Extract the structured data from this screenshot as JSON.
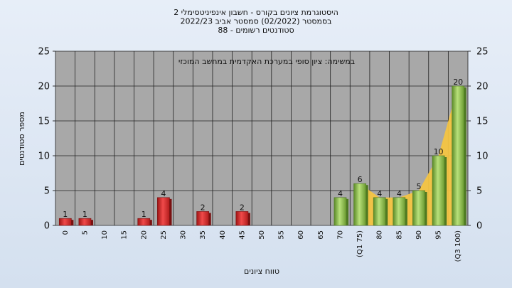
{
  "chart_data": {
    "type": "bar",
    "title_lines": [
      "היסטוגרמת ציונים בקורס - חשבון אינפיניטסימלי 2",
      "בסמסטר  (02/2022)  סמסטר אביב 2022/23",
      "סטודנטים רשומים - 88"
    ],
    "annotation": "במשימה: ציון סופי במערכת האקדמית במחשב המוכזי",
    "xlabel": "טווח ציונים",
    "ylabel": "מספר סטודנטים",
    "ylim": [
      0,
      25
    ],
    "yticks": [
      0,
      5,
      10,
      15,
      20,
      25
    ],
    "grid": true,
    "categories": [
      "0",
      "5",
      "10",
      "15",
      "20",
      "25",
      "30",
      "35",
      "40",
      "45",
      "50",
      "55",
      "60",
      "65",
      "70",
      "(Q1 75)",
      "80",
      "85",
      "90",
      "95",
      "(Q3 100)"
    ],
    "values": [
      1,
      1,
      0,
      0,
      1,
      4,
      0,
      2,
      0,
      2,
      0,
      0,
      0,
      0,
      4,
      6,
      4,
      4,
      5,
      10,
      20
    ],
    "data_labels": [
      "1",
      "1",
      "",
      "",
      "1",
      "4",
      "",
      "2",
      "",
      "2",
      "",
      "",
      "",
      "",
      "4",
      "6",
      "4",
      "4",
      "5",
      "10",
      "20"
    ],
    "area_values": [
      null,
      null,
      null,
      null,
      null,
      null,
      null,
      null,
      null,
      null,
      null,
      null,
      null,
      null,
      null,
      6,
      4,
      4,
      5,
      10,
      20
    ],
    "colors": {
      "fail_bar": "#e03030",
      "pass_bar": "#8fc04a",
      "area": "#f4c442",
      "plot_bg": "#a8a8a8",
      "page_bg": "#dbe4f0"
    }
  }
}
